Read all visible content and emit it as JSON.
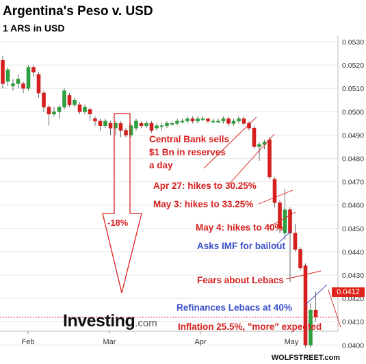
{
  "title": "Argentina's Peso v. USD",
  "subtitle": "1 ARS in USD",
  "source_logo": {
    "brand": "Investing",
    "suffix": ".com"
  },
  "credit": "WOLFSTREET.com",
  "last_price": "0.0412",
  "drop_label": "-18%",
  "annotations": [
    {
      "lines": [
        "Central Bank sells",
        "$1 Bn in reserves",
        "a day"
      ],
      "color": "red"
    },
    {
      "lines": [
        "Apr 27: hikes to 30.25%"
      ],
      "color": "red"
    },
    {
      "lines": [
        "May 3: hikes to 33.25%"
      ],
      "color": "red"
    },
    {
      "lines": [
        "May 4: hikes to 40%"
      ],
      "color": "red"
    },
    {
      "lines": [
        "Asks IMF for bailout"
      ],
      "color": "blue"
    },
    {
      "lines": [
        "Fears about Lebacs"
      ],
      "color": "red"
    },
    {
      "lines": [
        "Refinances Lebacs at 40%"
      ],
      "color": "blue"
    },
    {
      "lines": [
        "Inflation 25.5%, \"more\" expected"
      ],
      "color": "red"
    }
  ],
  "colors": {
    "up": "#2e9e3e",
    "down": "#d61f1f",
    "annotation_red": "#d61f1f",
    "annotation_blue": "#3a4fc7",
    "last_price_box": "#e0241b"
  },
  "chart_data": {
    "type": "candlestick",
    "x_ticks": [
      "Feb",
      "Mar",
      "Apr",
      "May"
    ],
    "y_ticks": [
      "0.0530",
      "0.0520",
      "0.0510",
      "0.0500",
      "0.0490",
      "0.0480",
      "0.0470",
      "0.0460",
      "0.0450",
      "0.0440",
      "0.0430",
      "0.0420",
      "0.0410",
      "0.0400"
    ],
    "ylim": [
      0.0394,
      0.0534
    ],
    "grid": "horizontal",
    "price_axis": "right",
    "reference_line": 0.0412,
    "candles": [
      {
        "o": 0.0522,
        "c": 0.0512,
        "h": 0.0524,
        "l": 0.051
      },
      {
        "o": 0.0513,
        "c": 0.0518,
        "h": 0.0519,
        "l": 0.0511
      },
      {
        "o": 0.0511,
        "c": 0.0512,
        "h": 0.0514,
        "l": 0.0509
      },
      {
        "o": 0.0512,
        "c": 0.0514,
        "h": 0.0516,
        "l": 0.051
      },
      {
        "o": 0.0512,
        "c": 0.051,
        "h": 0.0513,
        "l": 0.0508
      },
      {
        "o": 0.051,
        "c": 0.0519,
        "h": 0.052,
        "l": 0.0509
      },
      {
        "o": 0.0519,
        "c": 0.0517,
        "h": 0.052,
        "l": 0.0515
      },
      {
        "o": 0.0516,
        "c": 0.0508,
        "h": 0.0517,
        "l": 0.0506
      },
      {
        "o": 0.0508,
        "c": 0.0502,
        "h": 0.0509,
        "l": 0.05
      },
      {
        "o": 0.0502,
        "c": 0.0499,
        "h": 0.0503,
        "l": 0.0494
      },
      {
        "o": 0.0499,
        "c": 0.05,
        "h": 0.0502,
        "l": 0.0498
      },
      {
        "o": 0.05,
        "c": 0.0502,
        "h": 0.0503,
        "l": 0.0497
      },
      {
        "o": 0.0502,
        "c": 0.0509,
        "h": 0.051,
        "l": 0.0501
      },
      {
        "o": 0.0507,
        "c": 0.0503,
        "h": 0.0508,
        "l": 0.0502
      },
      {
        "o": 0.0503,
        "c": 0.0505,
        "h": 0.0506,
        "l": 0.0502
      },
      {
        "o": 0.0503,
        "c": 0.05,
        "h": 0.0504,
        "l": 0.0499
      },
      {
        "o": 0.05,
        "c": 0.0502,
        "h": 0.0503,
        "l": 0.0499
      },
      {
        "o": 0.0501,
        "c": 0.0499,
        "h": 0.0502,
        "l": 0.0496
      },
      {
        "o": 0.0497,
        "c": 0.0496,
        "h": 0.0498,
        "l": 0.0494
      },
      {
        "o": 0.0496,
        "c": 0.0494,
        "h": 0.0497,
        "l": 0.0492
      },
      {
        "o": 0.0494,
        "c": 0.0496,
        "h": 0.0497,
        "l": 0.0493
      },
      {
        "o": 0.0495,
        "c": 0.0493,
        "h": 0.0496,
        "l": 0.049
      },
      {
        "o": 0.0493,
        "c": 0.0495,
        "h": 0.0496,
        "l": 0.049
      },
      {
        "o": 0.0495,
        "c": 0.0492,
        "h": 0.0496,
        "l": 0.0489
      },
      {
        "o": 0.0492,
        "c": 0.049,
        "h": 0.0493,
        "l": 0.0489
      },
      {
        "o": 0.049,
        "c": 0.0494,
        "h": 0.0495,
        "l": 0.0489
      },
      {
        "o": 0.0493,
        "c": 0.0496,
        "h": 0.0497,
        "l": 0.0492
      },
      {
        "o": 0.0495,
        "c": 0.0494,
        "h": 0.0496,
        "l": 0.0493
      },
      {
        "o": 0.0494,
        "c": 0.0495,
        "h": 0.0496,
        "l": 0.0493
      },
      {
        "o": 0.0495,
        "c": 0.0492,
        "h": 0.0496,
        "l": 0.0491
      },
      {
        "o": 0.0493,
        "c": 0.0494,
        "h": 0.0495,
        "l": 0.0492
      },
      {
        "o": 0.0494,
        "c": 0.0494,
        "h": 0.0495,
        "l": 0.0492
      },
      {
        "o": 0.0494,
        "c": 0.0495,
        "h": 0.0496,
        "l": 0.0493
      },
      {
        "o": 0.0495,
        "c": 0.0495,
        "h": 0.0496,
        "l": 0.0494
      },
      {
        "o": 0.0495,
        "c": 0.0496,
        "h": 0.0497,
        "l": 0.0494
      },
      {
        "o": 0.0496,
        "c": 0.0496,
        "h": 0.0497,
        "l": 0.0495
      },
      {
        "o": 0.0496,
        "c": 0.0497,
        "h": 0.0498,
        "l": 0.0495
      },
      {
        "o": 0.0497,
        "c": 0.0496,
        "h": 0.0498,
        "l": 0.0495
      },
      {
        "o": 0.0496,
        "c": 0.0497,
        "h": 0.0498,
        "l": 0.0495
      },
      {
        "o": 0.0497,
        "c": 0.0497,
        "h": 0.0498,
        "l": 0.0496
      },
      {
        "o": 0.0497,
        "c": 0.0496,
        "h": 0.0497,
        "l": 0.0495
      },
      {
        "o": 0.0496,
        "c": 0.0496,
        "h": 0.0497,
        "l": 0.0495
      },
      {
        "o": 0.0496,
        "c": 0.0496,
        "h": 0.0497,
        "l": 0.0495
      },
      {
        "o": 0.0496,
        "c": 0.0497,
        "h": 0.0498,
        "l": 0.0495
      },
      {
        "o": 0.0497,
        "c": 0.0495,
        "h": 0.0498,
        "l": 0.0494
      },
      {
        "o": 0.0495,
        "c": 0.0496,
        "h": 0.0497,
        "l": 0.0494
      },
      {
        "o": 0.0496,
        "c": 0.0497,
        "h": 0.0498,
        "l": 0.0495
      },
      {
        "o": 0.0497,
        "c": 0.0495,
        "h": 0.0498,
        "l": 0.0494
      },
      {
        "o": 0.0495,
        "c": 0.0493,
        "h": 0.0496,
        "l": 0.0492
      },
      {
        "o": 0.0493,
        "c": 0.0485,
        "h": 0.0494,
        "l": 0.0484
      },
      {
        "o": 0.0485,
        "c": 0.0486,
        "h": 0.0487,
        "l": 0.0479
      },
      {
        "o": 0.0486,
        "c": 0.0487,
        "h": 0.0488,
        "l": 0.0484
      },
      {
        "o": 0.0488,
        "c": 0.0472,
        "h": 0.0489,
        "l": 0.0471
      },
      {
        "o": 0.0471,
        "c": 0.0461,
        "h": 0.0472,
        "l": 0.0459
      },
      {
        "o": 0.0461,
        "c": 0.045,
        "h": 0.0462,
        "l": 0.0448
      },
      {
        "o": 0.0448,
        "c": 0.0458,
        "h": 0.0467,
        "l": 0.0445
      },
      {
        "o": 0.0458,
        "c": 0.0448,
        "h": 0.0459,
        "l": 0.0427
      },
      {
        "o": 0.0448,
        "c": 0.0441,
        "h": 0.0452,
        "l": 0.044
      },
      {
        "o": 0.0441,
        "c": 0.0433,
        "h": 0.0442,
        "l": 0.0432
      },
      {
        "o": 0.0434,
        "c": 0.04,
        "h": 0.0435,
        "l": 0.0399
      },
      {
        "o": 0.04,
        "c": 0.0415,
        "h": 0.0418,
        "l": 0.0399
      },
      {
        "o": 0.0415,
        "c": 0.0412,
        "h": 0.0423,
        "l": 0.041
      }
    ]
  }
}
